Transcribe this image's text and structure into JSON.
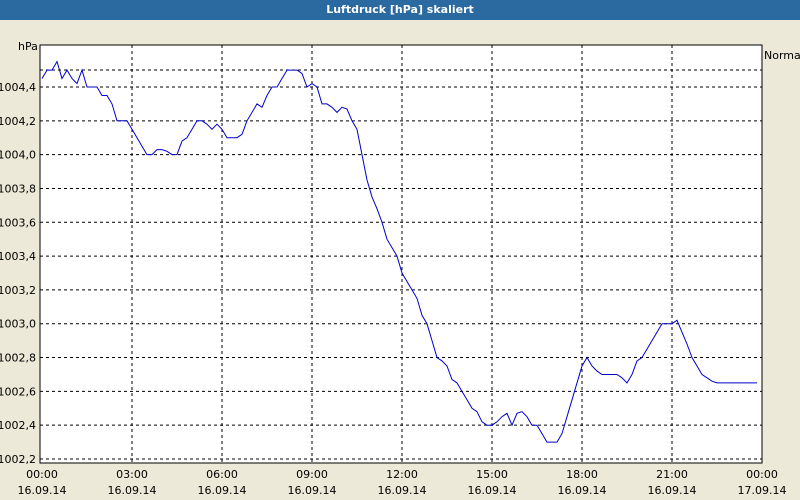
{
  "window": {
    "title": "Luftdruck [hPa] skaliert"
  },
  "chart_data": {
    "type": "line",
    "title": "Luftdruck [hPa] skaliert",
    "ylabel": "hPa",
    "ylim": [
      1002.2,
      1004.6
    ],
    "yticks": [
      "1002,2",
      "1002,4",
      "1002,6",
      "1002,8",
      "1003,0",
      "1003,2",
      "1003,4",
      "1003,6",
      "1003,8",
      "1004,0",
      "1004,2",
      "1004,4"
    ],
    "xlim": [
      "16.09.14 00:00",
      "17.09.14 00:00"
    ],
    "xticks": [
      {
        "time": "00:00",
        "date": "16.09.14"
      },
      {
        "time": "03:00",
        "date": "16.09.14"
      },
      {
        "time": "06:00",
        "date": "16.09.14"
      },
      {
        "time": "09:00",
        "date": "16.09.14"
      },
      {
        "time": "12:00",
        "date": "16.09.14"
      },
      {
        "time": "15:00",
        "date": "16.09.14"
      },
      {
        "time": "18:00",
        "date": "16.09.14"
      },
      {
        "time": "21:00",
        "date": "16.09.14"
      },
      {
        "time": "00:00",
        "date": "17.09.14"
      }
    ],
    "grid": true,
    "legend": {
      "position": "top-right",
      "entries": [
        "Normal"
      ]
    },
    "series": [
      {
        "name": "Normal",
        "color": "#0000cc",
        "x": [
          "00:00",
          "00:10",
          "00:20",
          "00:30",
          "00:40",
          "00:50",
          "01:00",
          "01:10",
          "01:20",
          "01:30",
          "01:40",
          "01:50",
          "02:00",
          "02:10",
          "02:20",
          "02:30",
          "02:40",
          "02:50",
          "03:00",
          "03:10",
          "03:20",
          "03:30",
          "03:40",
          "03:50",
          "04:00",
          "04:10",
          "04:20",
          "04:30",
          "04:40",
          "04:50",
          "05:00",
          "05:10",
          "05:20",
          "05:30",
          "05:40",
          "05:50",
          "06:00",
          "06:10",
          "06:20",
          "06:30",
          "06:40",
          "06:50",
          "07:00",
          "07:10",
          "07:20",
          "07:30",
          "07:40",
          "07:50",
          "08:00",
          "08:10",
          "08:20",
          "08:30",
          "08:40",
          "08:50",
          "09:00",
          "09:10",
          "09:20",
          "09:30",
          "09:40",
          "09:50",
          "10:00",
          "10:10",
          "10:20",
          "10:30",
          "10:40",
          "10:50",
          "11:00",
          "11:10",
          "11:20",
          "11:30",
          "11:40",
          "11:50",
          "12:00",
          "12:10",
          "12:20",
          "12:30",
          "12:40",
          "12:50",
          "13:00",
          "13:10",
          "13:20",
          "13:30",
          "13:40",
          "13:50",
          "14:00",
          "14:10",
          "14:20",
          "14:30",
          "14:40",
          "14:50",
          "15:00",
          "15:10",
          "15:20",
          "15:30",
          "15:40",
          "15:50",
          "16:00",
          "16:10",
          "16:20",
          "16:30",
          "16:40",
          "16:50",
          "17:00",
          "17:10",
          "17:20",
          "17:30",
          "17:40",
          "17:50",
          "18:00",
          "18:10",
          "18:20",
          "18:30",
          "18:40",
          "18:50",
          "19:00",
          "19:10",
          "19:20",
          "19:30",
          "19:40",
          "19:50",
          "20:00",
          "20:10",
          "20:20",
          "20:30",
          "20:40",
          "20:50",
          "21:00",
          "21:10",
          "21:20",
          "21:30",
          "21:40",
          "21:50",
          "22:00",
          "22:10",
          "22:20",
          "22:30",
          "22:40",
          "22:50",
          "23:00",
          "23:10",
          "23:20",
          "23:30",
          "23:40",
          "23:50"
        ],
        "y": [
          1004.45,
          1004.5,
          1004.5,
          1004.55,
          1004.45,
          1004.5,
          1004.45,
          1004.42,
          1004.5,
          1004.4,
          1004.4,
          1004.4,
          1004.35,
          1004.35,
          1004.3,
          1004.2,
          1004.2,
          1004.2,
          1004.15,
          1004.1,
          1004.05,
          1004.0,
          1004.0,
          1004.03,
          1004.03,
          1004.02,
          1004.0,
          1004.0,
          1004.08,
          1004.1,
          1004.15,
          1004.2,
          1004.2,
          1004.18,
          1004.15,
          1004.18,
          1004.15,
          1004.1,
          1004.1,
          1004.1,
          1004.12,
          1004.2,
          1004.25,
          1004.3,
          1004.28,
          1004.35,
          1004.4,
          1004.4,
          1004.45,
          1004.5,
          1004.5,
          1004.5,
          1004.48,
          1004.4,
          1004.42,
          1004.4,
          1004.3,
          1004.3,
          1004.28,
          1004.25,
          1004.28,
          1004.27,
          1004.2,
          1004.15,
          1004.0,
          1003.85,
          1003.75,
          1003.68,
          1003.6,
          1003.5,
          1003.45,
          1003.4,
          1003.3,
          1003.25,
          1003.2,
          1003.15,
          1003.05,
          1003.0,
          1002.9,
          1002.8,
          1002.78,
          1002.75,
          1002.67,
          1002.65,
          1002.6,
          1002.55,
          1002.5,
          1002.48,
          1002.42,
          1002.4,
          1002.4,
          1002.42,
          1002.45,
          1002.47,
          1002.4,
          1002.47,
          1002.48,
          1002.45,
          1002.4,
          1002.4,
          1002.35,
          1002.3,
          1002.3,
          1002.3,
          1002.35,
          1002.45,
          1002.55,
          1002.65,
          1002.75,
          1002.8,
          1002.75,
          1002.72,
          1002.7,
          1002.7,
          1002.7,
          1002.7,
          1002.68,
          1002.65,
          1002.7,
          1002.78,
          1002.8,
          1002.85,
          1002.9,
          1002.95,
          1003.0,
          1003.0,
          1003.0,
          1003.02,
          1002.95,
          1002.88,
          1002.8,
          1002.75,
          1002.7,
          1002.68,
          1002.66,
          1002.65,
          1002.65,
          1002.65,
          1002.65,
          1002.65,
          1002.65,
          1002.65,
          1002.65,
          1002.65
        ]
      }
    ]
  }
}
